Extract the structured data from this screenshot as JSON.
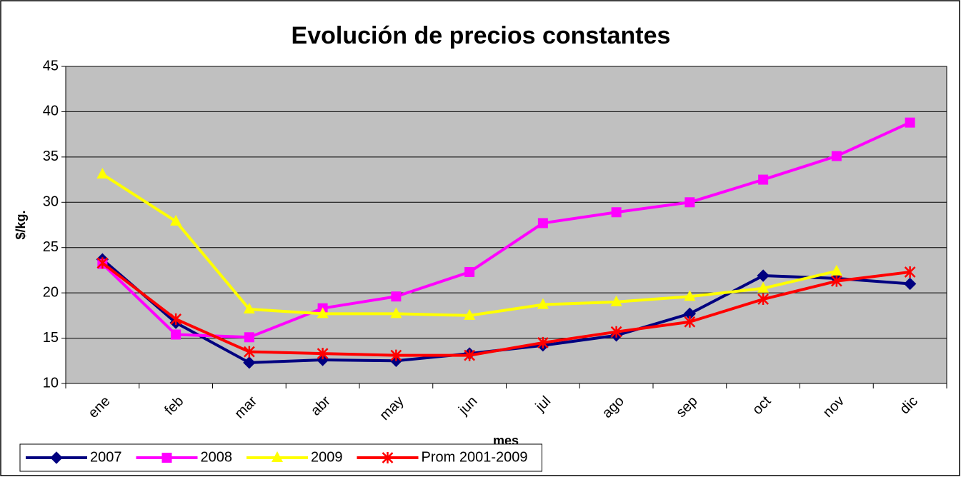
{
  "chart_data": {
    "type": "line",
    "title": "Evolución de precios constantes",
    "xlabel": "mes",
    "ylabel": "$/kg.",
    "categories": [
      "ene",
      "feb",
      "mar",
      "abr",
      "may",
      "jun",
      "jul",
      "ago",
      "sep",
      "oct",
      "nov",
      "dic"
    ],
    "series": [
      {
        "name": "2007",
        "color": "#000080",
        "marker": "diamond",
        "values": [
          23.7,
          16.7,
          12.3,
          12.6,
          12.5,
          13.3,
          14.2,
          15.3,
          17.7,
          21.9,
          21.6,
          21.0
        ]
      },
      {
        "name": "2008",
        "color": "#FF00FF",
        "marker": "square",
        "values": [
          23.2,
          15.4,
          15.1,
          18.3,
          19.6,
          22.3,
          27.7,
          28.9,
          30.0,
          32.5,
          35.1,
          38.8
        ]
      },
      {
        "name": "2009",
        "color": "#FFFF00",
        "marker": "triangle",
        "values": [
          33.1,
          27.9,
          18.2,
          17.7,
          17.7,
          17.5,
          18.7,
          19.0,
          19.6,
          20.5,
          22.4,
          null
        ]
      },
      {
        "name": "Prom 2001-2009",
        "color": "#FF0000",
        "marker": "asterisk",
        "values": [
          23.3,
          17.1,
          13.5,
          13.3,
          13.1,
          13.1,
          14.5,
          15.7,
          16.8,
          19.3,
          21.3,
          22.3
        ]
      }
    ],
    "ylim": [
      10,
      45
    ],
    "yticks": [
      10,
      15,
      20,
      25,
      30,
      35,
      40,
      45
    ],
    "grid": true,
    "plot_background": "#C0C0C0",
    "legend": "bottom-left"
  }
}
